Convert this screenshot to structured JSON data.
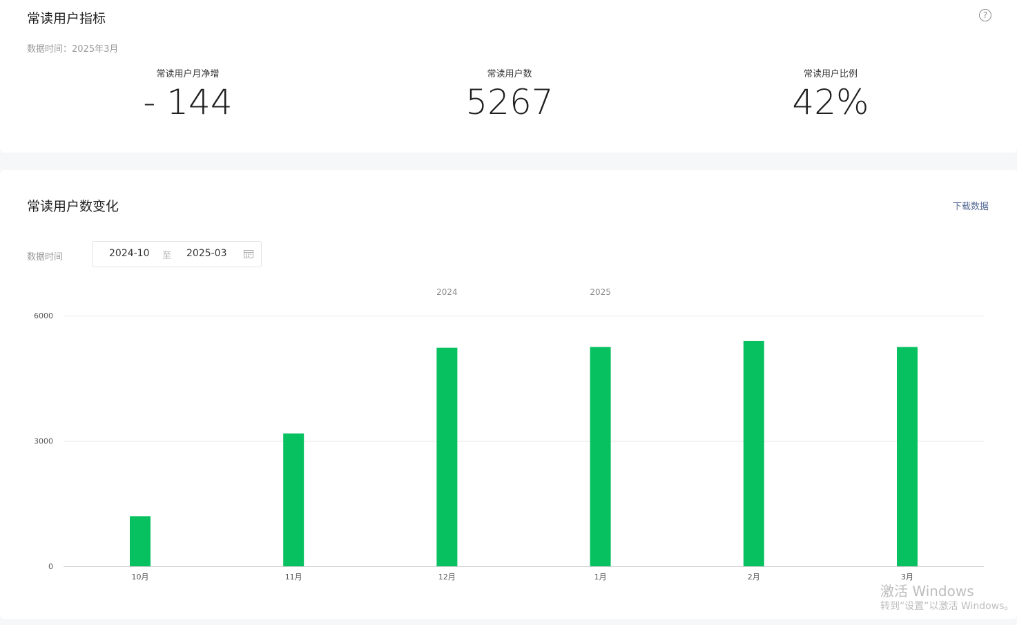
{
  "indicators": {
    "title": "常读用户指标",
    "data_time": "数据时间：2025年3月",
    "help_icon": "question-circle-icon",
    "metrics": [
      {
        "label": "常读用户月净增",
        "value": "- 144"
      },
      {
        "label": "常读用户数",
        "value": "5267"
      },
      {
        "label": "常读用户比例",
        "value": "42%"
      }
    ]
  },
  "trend": {
    "title": "常读用户数变化",
    "download_label": "下载数据",
    "range_label": "数据时间",
    "range_start": "2024-10",
    "range_sep": "至",
    "range_end": "2025-03",
    "calendar_icon": "calendar-icon"
  },
  "chart_data": {
    "type": "bar",
    "year_labels": [
      {
        "text": "2024",
        "category_index": 2
      },
      {
        "text": "2025",
        "category_index": 3
      }
    ],
    "categories": [
      "10月",
      "11月",
      "12月",
      "1月",
      "2月",
      "3月"
    ],
    "values": [
      1200,
      3180,
      5230,
      5250,
      5390,
      5250
    ],
    "yticks": [
      "0",
      "3000",
      "6000"
    ],
    "ylim": [
      0,
      6000
    ],
    "bar_color": "#07c160",
    "grid_color": "#e7e7e7",
    "grid": true
  },
  "watermark": {
    "line1": "激活 Windows",
    "line2": "转到“设置”以激活 Windows。"
  }
}
